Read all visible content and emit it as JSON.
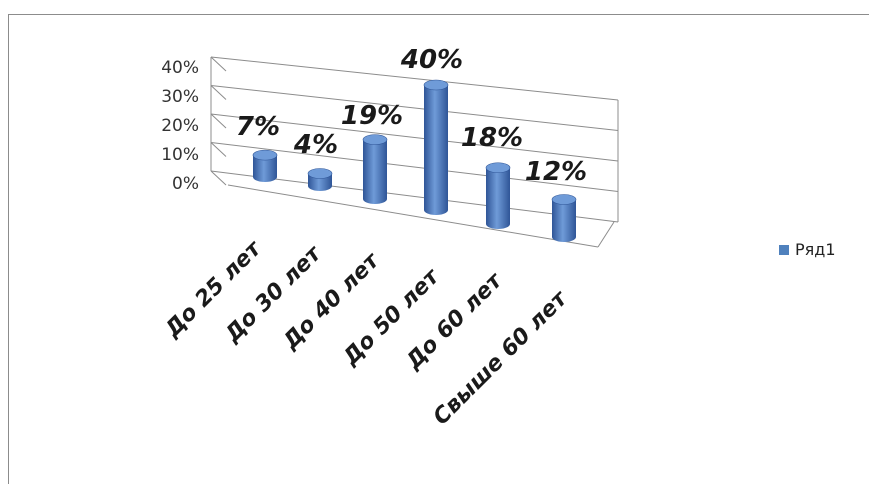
{
  "colors": {
    "bar": "#4f81bd",
    "bar_dark": "#2f5597",
    "bar_light": "#6f9bd8",
    "grid": "#8c8c8c",
    "text": "#1a1a1a"
  },
  "chart_data": {
    "type": "bar",
    "variant": "3d-cylinder",
    "categories": [
      "До 25 лет",
      "До 30 лет",
      "До 40 лет",
      "До 50 лет",
      "До 60 лет",
      "Свыше 60 лет"
    ],
    "series": [
      {
        "name": "Ряд1",
        "values": [
          7,
          4,
          19,
          40,
          18,
          12
        ],
        "data_labels": [
          "7%",
          "4%",
          "19%",
          "40%",
          "18%",
          "12%"
        ]
      }
    ],
    "y_ticks": [
      "0%",
      "10%",
      "20%",
      "30%",
      "40%"
    ],
    "ylim": [
      0,
      40
    ],
    "grid": true,
    "legend": "right",
    "title": "",
    "xlabel": "",
    "ylabel": ""
  }
}
